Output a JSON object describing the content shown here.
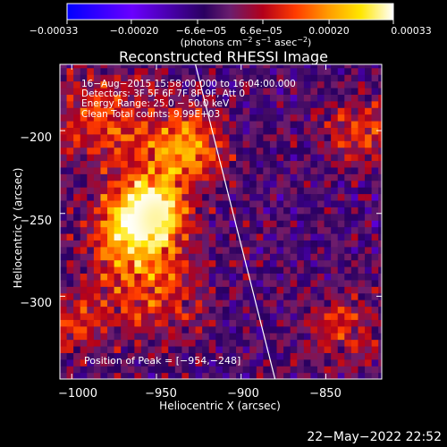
{
  "chart_data": {
    "type": "heatmap",
    "title": "Reconstructed RHESSI Image",
    "xlabel": "Heliocentric X (arcsec)",
    "ylabel": "Heliocentric Y (arcsec)",
    "xlim": [
      -1007,
      -817
    ],
    "ylim": [
      -350,
      -160
    ],
    "x_ticks": [
      -1000,
      -950,
      -900,
      -850
    ],
    "x_tick_labels": [
      "−1000",
      "−950",
      "−900",
      "−850"
    ],
    "y_ticks": [
      -200,
      -250,
      -300
    ],
    "y_tick_labels": [
      "−200",
      "−250",
      "−300"
    ],
    "colorbar": {
      "min": -0.00033,
      "max": 0.00033,
      "ticks": [
        -0.00033,
        -0.0002,
        -6.6e-05,
        6.6e-05,
        0.0002,
        0.00033
      ],
      "tick_labels": [
        "−0.00033",
        "−0.00020",
        "−6.6e−05",
        "6.6e−05",
        "0.00020",
        "0.00033"
      ],
      "units_label": "(photons cm",
      "units_exp1": "−2",
      "units_mid": " s",
      "units_exp2": "−1",
      "units_after": " asec",
      "units_exp3": "−2",
      "units_close": ")",
      "colormap": [
        "#0000ff",
        "#6a00ff",
        "#2a0060",
        "#6b1d6e",
        "#b3001a",
        "#ff3b00",
        "#ff9b00",
        "#ffe600",
        "#ffffff"
      ]
    },
    "limb_line": [
      {
        "x": -927,
        "y": -160
      },
      {
        "x": -880,
        "y": -350
      }
    ],
    "peak": {
      "x": -954,
      "y": -248
    },
    "annotations": [
      "16−Aug−2015 15:58:00.000 to 16:04:00.000",
      "Detectors: 3F 5F 6F 7F 8F 9F, Att 0",
      "Energy Range: 25.0 − 50.0 keV",
      "Clean     Total counts: 9.99E+03"
    ],
    "peak_label": "Position of Peak = [−954,−248]"
  },
  "footer": {
    "timestamp": "22−May−2022 22:52"
  }
}
